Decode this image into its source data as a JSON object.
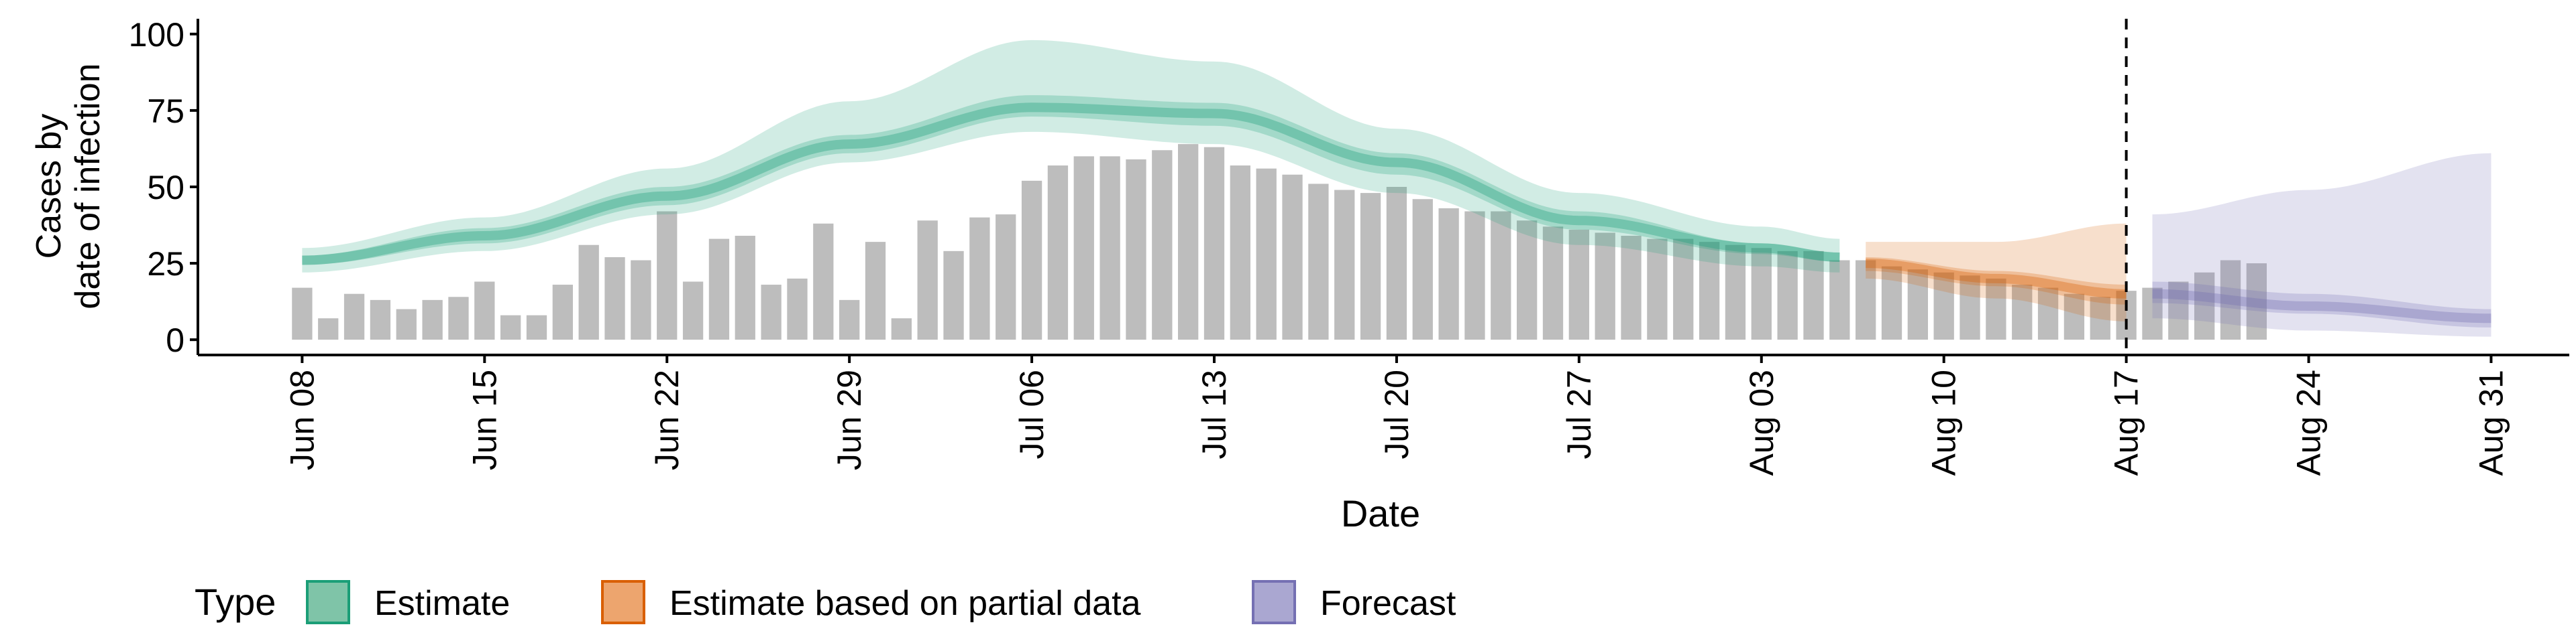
{
  "chart_data": {
    "type": "bar",
    "title": "",
    "xlabel": "Date",
    "ylabel": [
      "Cases by",
      "date of infection"
    ],
    "ylim": [
      0,
      100
    ],
    "yticks": [
      0,
      25,
      50,
      75,
      100
    ],
    "xlim": [
      "2020-06-04",
      "2020-09-03"
    ],
    "xticks": [
      "Jun 08",
      "Jun 15",
      "Jun 22",
      "Jun 29",
      "Jul 06",
      "Jul 13",
      "Jul 20",
      "Jul 27",
      "Aug 03",
      "Aug 10",
      "Aug 17",
      "Aug 24",
      "Aug 31"
    ],
    "xtick_dates": [
      "2020-06-08",
      "2020-06-15",
      "2020-06-22",
      "2020-06-29",
      "2020-07-06",
      "2020-07-13",
      "2020-07-20",
      "2020-07-27",
      "2020-08-03",
      "2020-08-10",
      "2020-08-17",
      "2020-08-24",
      "2020-08-31"
    ],
    "vline_date": "2020-08-17",
    "bars": {
      "start_date": "2020-06-08",
      "color": "#bdbdbd",
      "values": [
        17,
        7,
        15,
        13,
        10,
        13,
        14,
        19,
        8,
        8,
        18,
        31,
        27,
        26,
        42,
        19,
        33,
        34,
        18,
        20,
        38,
        13,
        32,
        7,
        39,
        29,
        40,
        41,
        52,
        57,
        60,
        60,
        59,
        62,
        64,
        63,
        57,
        56,
        54,
        51,
        49,
        48,
        50,
        46,
        43,
        42,
        42,
        39,
        37,
        36,
        35,
        34,
        33,
        33,
        32,
        31,
        30,
        29,
        29,
        26,
        26,
        24,
        23,
        22,
        21,
        20,
        18,
        17,
        15,
        14,
        16,
        17,
        19,
        22,
        26,
        25
      ]
    },
    "legend": {
      "title": "Type",
      "position": "bottom",
      "items": [
        {
          "label": "Estimate",
          "fill": "#7fc4a8",
          "border": "#1b9e77"
        },
        {
          "label": "Estimate based on partial data",
          "fill": "#eda56e",
          "border": "#d95f02"
        },
        {
          "label": "Forecast",
          "fill": "#aaa7d1",
          "border": "#7570b3"
        }
      ]
    },
    "series": [
      {
        "name": "Estimate",
        "color": "#1b9e77",
        "start_date": "2020-06-08",
        "end_date": "2020-08-06",
        "knots": {
          "x": [
            "2020-06-08",
            "2020-06-15",
            "2020-06-22",
            "2020-06-29",
            "2020-07-06",
            "2020-07-13",
            "2020-07-20",
            "2020-07-27",
            "2020-08-03",
            "2020-08-06"
          ],
          "median": [
            26,
            34,
            47,
            64,
            76,
            74,
            58,
            39,
            30,
            27
          ],
          "lower50": [
            24.5,
            31.5,
            44,
            61,
            73,
            70,
            54,
            36,
            28,
            25.5
          ],
          "upper50": [
            27.5,
            36.5,
            50,
            67,
            80,
            77.5,
            61,
            42,
            31.5,
            28.5
          ],
          "lower90": [
            22,
            29,
            41,
            58,
            68,
            64,
            48,
            31,
            24,
            22
          ],
          "upper90": [
            30,
            40,
            56,
            78,
            98,
            91,
            69,
            48,
            37,
            33
          ]
        }
      },
      {
        "name": "Estimate based on partial data",
        "color": "#d95f02",
        "start_date": "2020-08-07",
        "end_date": "2020-08-17",
        "knots": {
          "x": [
            "2020-08-07",
            "2020-08-12",
            "2020-08-17"
          ],
          "median": [
            25,
            20,
            15
          ],
          "lower50": [
            22.5,
            17.5,
            11.5
          ],
          "upper50": [
            27,
            22.5,
            18
          ],
          "lower90": [
            20,
            13.5,
            6
          ],
          "upper90": [
            32,
            32,
            38
          ]
        }
      },
      {
        "name": "Forecast",
        "color": "#7570b3",
        "start_date": "2020-08-18",
        "end_date": "2020-08-31",
        "knots": {
          "x": [
            "2020-08-18",
            "2020-08-24",
            "2020-08-31"
          ],
          "median": [
            15,
            11,
            7
          ],
          "lower50": [
            12,
            8.5,
            4
          ],
          "upper50": [
            19,
            15,
            10
          ],
          "lower90": [
            7,
            3,
            1
          ],
          "upper90": [
            41,
            49,
            61
          ]
        }
      }
    ]
  }
}
